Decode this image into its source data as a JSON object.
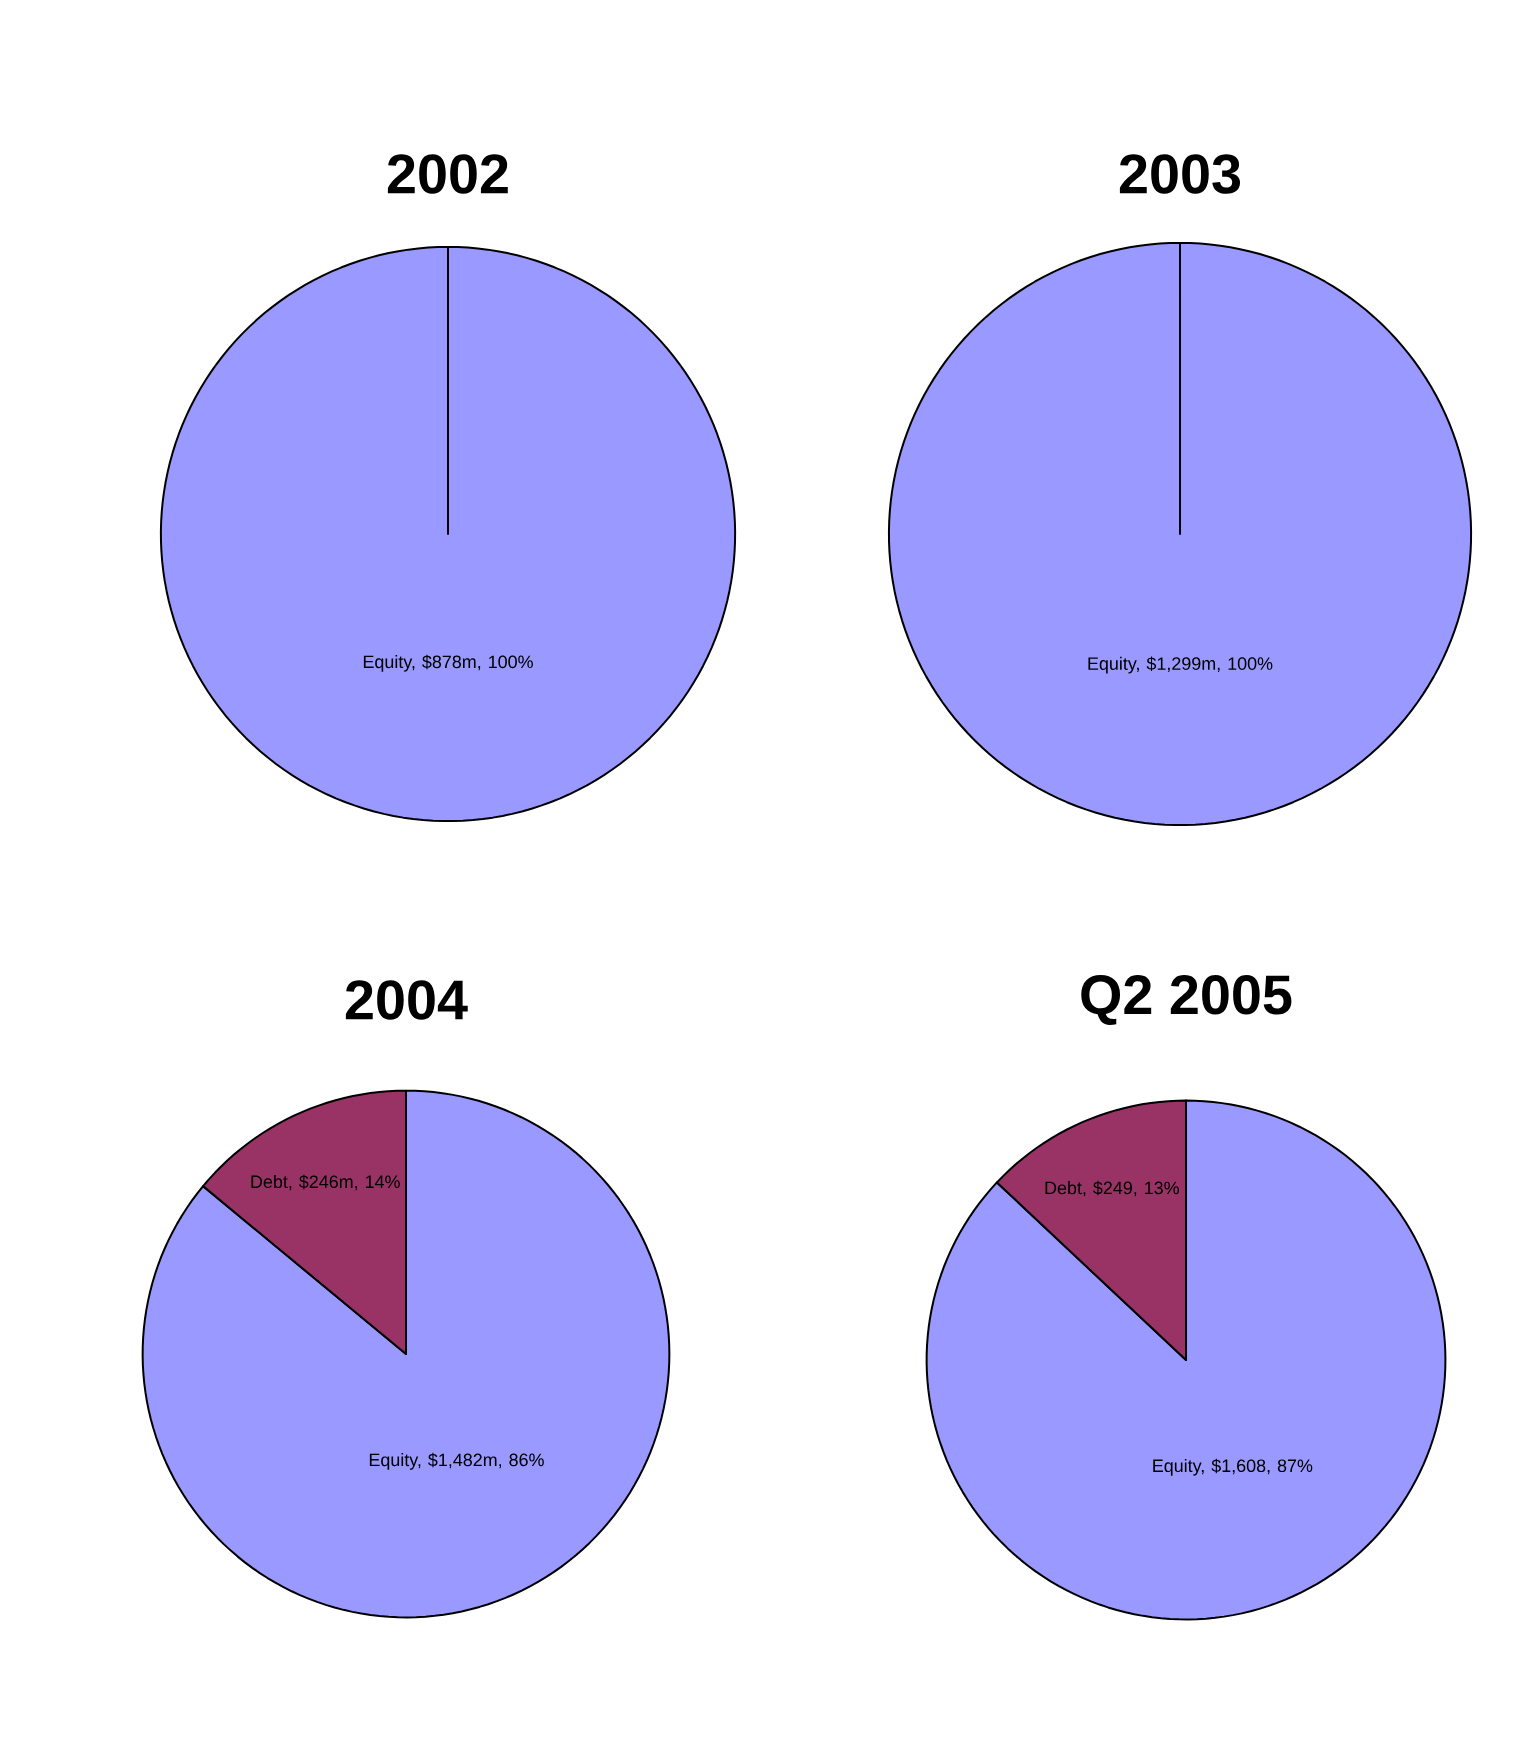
{
  "chart_data": [
    {
      "type": "pie",
      "title": "2002",
      "categories": [
        "Equity, $878m, 100%"
      ],
      "values": [
        100
      ],
      "colors": [
        "#9999ff"
      ]
    },
    {
      "type": "pie",
      "title": "2003",
      "categories": [
        "Equity, $1,299m, 100%"
      ],
      "values": [
        100
      ],
      "colors": [
        "#9999ff"
      ]
    },
    {
      "type": "pie",
      "title": "2004",
      "categories": [
        "Equity, $1,482m, 86%",
        "Debt, $246m, 14%"
      ],
      "values": [
        86,
        14
      ],
      "colors": [
        "#9999ff",
        "#993366"
      ]
    },
    {
      "type": "pie",
      "title": "Q2 2005",
      "categories": [
        "Equity, $1,608, 87%",
        "Debt, $249, 13%"
      ],
      "values": [
        87,
        13
      ],
      "colors": [
        "#9999ff",
        "#993366"
      ]
    }
  ]
}
